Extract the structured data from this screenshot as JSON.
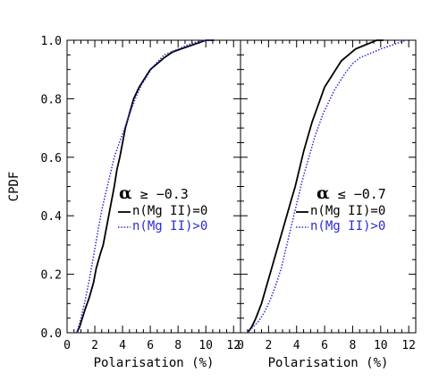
{
  "chart_data": {
    "type": "line",
    "ylabel": "CPDF",
    "x_ticks": [
      "0",
      "2",
      "4",
      "6",
      "8",
      "10",
      "12"
    ],
    "y_ticks": [
      "0.0",
      "0.2",
      "0.4",
      "0.6",
      "0.8",
      "1.0"
    ],
    "xlim": [
      0,
      12.5
    ],
    "ylim": [
      0,
      1
    ],
    "colors": {
      "series_0": "#000000",
      "series_1": "#2a2ad6"
    },
    "panels": [
      {
        "annotation_symbol": "α",
        "annotation_text": " ≥ −0.3",
        "xlabel": "Polarisation (%)",
        "series": [
          {
            "name": "n(Mg II)=0",
            "line_style": "solid",
            "x": [
              0.7,
              0.9,
              1.1,
              1.3,
              1.6,
              1.9,
              2.1,
              2.4,
              2.6,
              2.8,
              3.0,
              3.2,
              3.4,
              3.6,
              3.8,
              4.0,
              4.2,
              4.5,
              4.8,
              5.2,
              5.6,
              6.0,
              6.5,
              7.0,
              7.6,
              8.2,
              8.8,
              9.4,
              10.0,
              10.6
            ],
            "y": [
              0.0,
              0.02,
              0.05,
              0.08,
              0.12,
              0.17,
              0.22,
              0.27,
              0.3,
              0.35,
              0.4,
              0.45,
              0.5,
              0.56,
              0.6,
              0.65,
              0.7,
              0.75,
              0.8,
              0.84,
              0.87,
              0.9,
              0.92,
              0.94,
              0.96,
              0.97,
              0.98,
              0.99,
              1.0,
              1.0
            ]
          },
          {
            "name": "n(Mg II)>0",
            "line_style": "dotted",
            "x": [
              0.7,
              1.0,
              1.3,
              1.6,
              1.9,
              2.2,
              2.5,
              2.8,
              3.1,
              3.4,
              3.7,
              4.0,
              4.3,
              4.6,
              5.0,
              5.4,
              5.8,
              6.2,
              6.6,
              7.0,
              7.5,
              8.0,
              8.5,
              9.0,
              9.5,
              10.0,
              10.4
            ],
            "y": [
              0.0,
              0.05,
              0.11,
              0.18,
              0.26,
              0.34,
              0.42,
              0.48,
              0.54,
              0.6,
              0.64,
              0.68,
              0.72,
              0.76,
              0.81,
              0.85,
              0.88,
              0.91,
              0.93,
              0.95,
              0.96,
              0.97,
              0.98,
              0.99,
              0.995,
              1.0,
              1.0
            ]
          }
        ]
      },
      {
        "annotation_symbol": "α",
        "annotation_text": " ≤ −0.7",
        "xlabel": "Polarisation (%)",
        "series": [
          {
            "name": "n(Mg II)=0",
            "line_style": "solid",
            "x": [
              0.5,
              0.8,
              1.1,
              1.5,
              1.8,
              2.1,
              2.4,
              2.7,
              3.0,
              3.3,
              3.6,
              3.9,
              4.2,
              4.5,
              4.8,
              5.1,
              5.4,
              5.7,
              6.0,
              6.4,
              6.8,
              7.2,
              7.7,
              8.2,
              8.7,
              9.2,
              9.7,
              10.2
            ],
            "y": [
              0.0,
              0.02,
              0.05,
              0.1,
              0.15,
              0.2,
              0.25,
              0.3,
              0.35,
              0.4,
              0.45,
              0.5,
              0.56,
              0.62,
              0.67,
              0.72,
              0.76,
              0.8,
              0.84,
              0.87,
              0.9,
              0.93,
              0.95,
              0.97,
              0.98,
              0.99,
              1.0,
              1.0
            ]
          },
          {
            "name": "n(Mg II)>0",
            "line_style": "dotted",
            "x": [
              0.5,
              0.9,
              1.3,
              1.7,
              2.1,
              2.5,
              2.9,
              3.2,
              3.5,
              3.8,
              4.1,
              4.4,
              4.7,
              5.0,
              5.3,
              5.6,
              5.9,
              6.3,
              6.7,
              7.1,
              7.5,
              8.0,
              8.5,
              9.0,
              9.5,
              10.0,
              10.6,
              11.2,
              11.8
            ],
            "y": [
              0.0,
              0.02,
              0.04,
              0.07,
              0.11,
              0.16,
              0.22,
              0.28,
              0.34,
              0.4,
              0.46,
              0.52,
              0.57,
              0.62,
              0.67,
              0.71,
              0.75,
              0.79,
              0.83,
              0.86,
              0.89,
              0.92,
              0.94,
              0.95,
              0.96,
              0.97,
              0.98,
              0.99,
              1.0
            ]
          }
        ]
      }
    ]
  }
}
